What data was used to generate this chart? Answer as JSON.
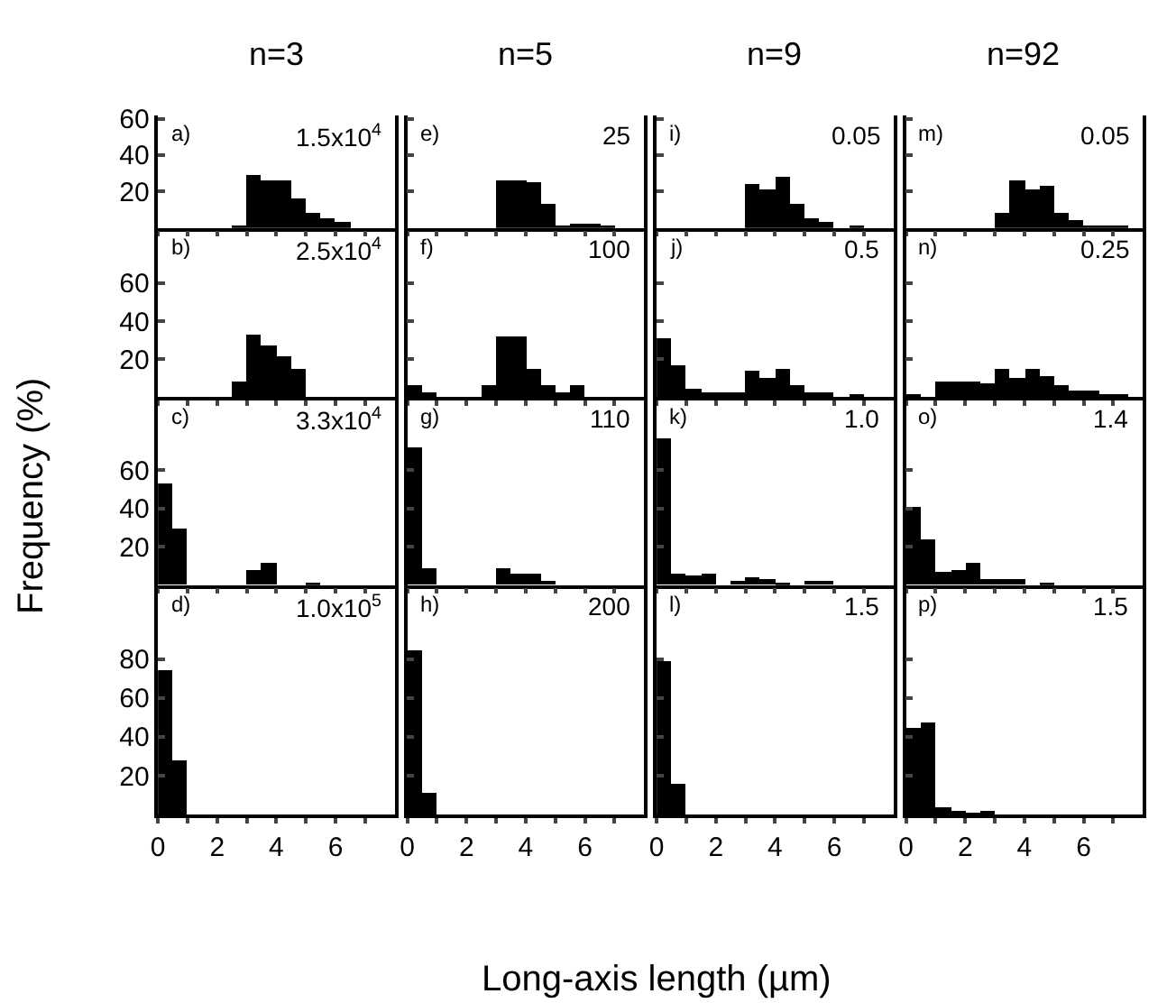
{
  "chart_data": [
    {
      "type": "histogram",
      "title": "n=3",
      "ylabel": "Frequency (%)",
      "annotations": [
        "a)",
        "1.5x10$^{4}$"
      ],
      "bins": [
        0,
        0.5,
        1,
        1.5,
        2,
        2.5,
        3,
        3.5,
        4,
        4.5,
        5,
        5.5,
        6,
        6.5,
        7,
        7.5,
        8
      ],
      "values": [
        0,
        0,
        0,
        0,
        0,
        1,
        29,
        26,
        26,
        16,
        9,
        6,
        4,
        0,
        0,
        0
      ],
      "color": "#000000",
      "xlim": [
        0,
        8
      ],
      "xticks": [
        0,
        {
          "value": 1,
          "label": null
        },
        2,
        {
          "value": 3,
          "label": null
        },
        4,
        {
          "value": 5,
          "label": null
        },
        6,
        {
          "value": 7,
          "label": null
        }
      ],
      "ylim": [
        0,
        62
      ],
      "yticks": [
        20,
        40,
        60
      ],
      "tick_labels": "y"
    },
    {
      "type": "histogram",
      "annotations": [
        "b)",
        "2.5x10$^{4}$"
      ],
      "bins": [
        0,
        0.5,
        1,
        1.5,
        2,
        2.5,
        3,
        3.5,
        4,
        4.5,
        5,
        5.5,
        6,
        6.5,
        7,
        7.5,
        8
      ],
      "values": [
        0,
        0,
        0,
        0,
        0,
        8,
        33,
        27,
        22,
        15,
        0,
        0,
        0,
        0,
        0,
        0
      ],
      "color": "#000000",
      "xlim": [
        0,
        8
      ],
      "xticks": [
        0,
        {
          "value": 1,
          "label": null
        },
        2,
        {
          "value": 3,
          "label": null
        },
        4,
        {
          "value": 5,
          "label": null
        },
        6,
        {
          "value": 7,
          "label": null
        }
      ],
      "ylim": [
        0,
        89
      ],
      "yticks": [
        20,
        40,
        60
      ],
      "tick_labels": "y"
    },
    {
      "type": "histogram",
      "annotations": [
        "c)",
        "3.3x10$^{4}$"
      ],
      "bins": [
        0,
        0.5,
        1,
        1.5,
        2,
        2.5,
        3,
        3.5,
        4,
        4.5,
        5,
        5.5,
        6,
        6.5,
        7,
        7.5,
        8
      ],
      "values": [
        53,
        29,
        0,
        0,
        0,
        0,
        8,
        11,
        0,
        0,
        1,
        0,
        0,
        0,
        0,
        0
      ],
      "color": "#000000",
      "xlim": [
        0,
        8
      ],
      "xticks": [
        0,
        {
          "value": 1,
          "label": null
        },
        2,
        {
          "value": 3,
          "label": null
        },
        4,
        {
          "value": 5,
          "label": null
        },
        6,
        {
          "value": 7,
          "label": null
        }
      ],
      "ylim": [
        0,
        98
      ],
      "yticks": [
        20,
        40,
        60
      ],
      "tick_labels": "y"
    },
    {
      "type": "histogram",
      "annotations": [
        "d)",
        "1.0x10$^{5}$"
      ],
      "bins": [
        0,
        0.5,
        1,
        1.5,
        2,
        2.5,
        3,
        3.5,
        4,
        4.5,
        5,
        5.5,
        6,
        6.5,
        7,
        7.5,
        8
      ],
      "values": [
        74,
        28,
        0,
        0,
        0,
        0,
        0,
        0,
        0,
        0,
        0,
        0,
        0,
        0,
        0,
        0
      ],
      "color": "#000000",
      "xlim": [
        0,
        8
      ],
      "xticks": [
        0,
        {
          "value": 1,
          "label": null
        },
        2,
        {
          "value": 3,
          "label": null
        },
        4,
        {
          "value": 5,
          "label": null
        },
        6,
        {
          "value": 7,
          "label": null
        }
      ],
      "ylim": [
        0,
        118
      ],
      "yticks": [
        20,
        40,
        60,
        80
      ]
    },
    {
      "type": "histogram",
      "title": "n=5",
      "annotations": [
        "e)",
        "25"
      ],
      "bins": [
        0,
        0.5,
        1,
        1.5,
        2,
        2.5,
        3,
        3.5,
        4,
        4.5,
        5,
        5.5,
        6,
        6.5,
        7,
        7.5,
        8
      ],
      "values": [
        0,
        0,
        0,
        0,
        0,
        0,
        26,
        26,
        25,
        14,
        1,
        3,
        3,
        1,
        0,
        0
      ],
      "color": "#000000",
      "xlim": [
        0,
        8
      ],
      "xticks": [
        0,
        {
          "value": 1,
          "label": null
        },
        2,
        {
          "value": 3,
          "label": null
        },
        4,
        {
          "value": 5,
          "label": null
        },
        6,
        {
          "value": 7,
          "label": null
        }
      ],
      "ylim": [
        0,
        62
      ],
      "yticks": [
        {
          "value": 20,
          "label": null
        },
        {
          "value": 40,
          "label": null
        },
        {
          "value": 60,
          "label": null
        }
      ],
      "tick_labels": false
    },
    {
      "type": "histogram",
      "annotations": [
        "f)",
        "100"
      ],
      "bins": [
        0,
        0.5,
        1,
        1.5,
        2,
        2.5,
        3,
        3.5,
        4,
        4.5,
        5,
        5.5,
        6,
        6.5,
        7,
        7.5,
        8
      ],
      "values": [
        6,
        3,
        0,
        0,
        0,
        6,
        32,
        32,
        15,
        6,
        3,
        6,
        0,
        0,
        0,
        0
      ],
      "color": "#000000",
      "xlim": [
        0,
        8
      ],
      "xticks": [
        0,
        {
          "value": 1,
          "label": null
        },
        2,
        {
          "value": 3,
          "label": null
        },
        4,
        {
          "value": 5,
          "label": null
        },
        6,
        {
          "value": 7,
          "label": null
        }
      ],
      "ylim": [
        0,
        89
      ],
      "yticks": [
        {
          "value": 20,
          "label": null
        },
        {
          "value": 40,
          "label": null
        },
        {
          "value": 60,
          "label": null
        }
      ],
      "tick_labels": false
    },
    {
      "type": "histogram",
      "annotations": [
        "g)",
        "110"
      ],
      "bins": [
        0,
        0.5,
        1,
        1.5,
        2,
        2.5,
        3,
        3.5,
        4,
        4.5,
        5,
        5.5,
        6,
        6.5,
        7,
        7.5,
        8
      ],
      "values": [
        72,
        9,
        0,
        0,
        0,
        0,
        9,
        6,
        6,
        2,
        0,
        0,
        0,
        0,
        0,
        0
      ],
      "color": "#000000",
      "xlim": [
        0,
        8
      ],
      "xticks": [
        0,
        {
          "value": 1,
          "label": null
        },
        2,
        {
          "value": 3,
          "label": null
        },
        4,
        {
          "value": 5,
          "label": null
        },
        6,
        {
          "value": 7,
          "label": null
        }
      ],
      "ylim": [
        0,
        98
      ],
      "yticks": [
        {
          "value": 20,
          "label": null
        },
        {
          "value": 40,
          "label": null
        },
        {
          "value": 60,
          "label": null
        }
      ],
      "tick_labels": false
    },
    {
      "type": "histogram",
      "xlabel": "Long-axis length (µm)",
      "annotations": [
        "h)",
        "200"
      ],
      "bins": [
        0,
        0.5,
        1,
        1.5,
        2,
        2.5,
        3,
        3.5,
        4,
        4.5,
        5,
        5.5,
        6,
        6.5,
        7,
        7.5,
        8
      ],
      "values": [
        85,
        11,
        0,
        0,
        0,
        0,
        0,
        0,
        0,
        0,
        0,
        0,
        0,
        0,
        0,
        0
      ],
      "color": "#000000",
      "xlim": [
        0,
        8
      ],
      "xticks": [
        0,
        {
          "value": 1,
          "label": null
        },
        2,
        {
          "value": 3,
          "label": null
        },
        4,
        {
          "value": 5,
          "label": null
        },
        6,
        {
          "value": 7,
          "label": null
        }
      ],
      "ylim": [
        0,
        118
      ],
      "yticks": [
        {
          "value": 20,
          "label": null
        },
        {
          "value": 40,
          "label": null
        },
        {
          "value": 60,
          "label": null
        },
        {
          "value": 80,
          "label": null
        }
      ],
      "tick_labels": "x"
    },
    {
      "type": "histogram",
      "title": "n=9",
      "annotations": [
        "i)",
        "0.05"
      ],
      "bins": [
        0,
        0.5,
        1,
        1.5,
        2,
        2.5,
        3,
        3.5,
        4,
        4.5,
        5,
        5.5,
        6,
        6.5,
        7,
        7.5,
        8
      ],
      "values": [
        0,
        0,
        0,
        0,
        0,
        0,
        24,
        21,
        28,
        14,
        6,
        4,
        0,
        1,
        0,
        0
      ],
      "color": "#000000",
      "xlim": [
        0,
        8
      ],
      "xticks": [
        0,
        {
          "value": 1,
          "label": null
        },
        2,
        {
          "value": 3,
          "label": null
        },
        4,
        {
          "value": 5,
          "label": null
        },
        6,
        {
          "value": 7,
          "label": null
        }
      ],
      "ylim": [
        0,
        62
      ],
      "yticks": [
        {
          "value": 20,
          "label": null
        },
        {
          "value": 40,
          "label": null
        },
        {
          "value": 60,
          "label": null
        }
      ],
      "tick_labels": false
    },
    {
      "type": "histogram",
      "annotations": [
        "j)",
        "0.5"
      ],
      "bins": [
        0,
        0.5,
        1,
        1.5,
        2,
        2.5,
        3,
        3.5,
        4,
        4.5,
        5,
        5.5,
        6,
        6.5,
        7,
        7.5,
        8
      ],
      "values": [
        31,
        17,
        5,
        3,
        3,
        3,
        14,
        10,
        15,
        6,
        3,
        3,
        0,
        1,
        0,
        0
      ],
      "color": "#000000",
      "xlim": [
        0,
        8
      ],
      "xticks": [
        0,
        {
          "value": 1,
          "label": null
        },
        2,
        {
          "value": 3,
          "label": null
        },
        4,
        {
          "value": 5,
          "label": null
        },
        6,
        {
          "value": 7,
          "label": null
        }
      ],
      "ylim": [
        0,
        89
      ],
      "yticks": [
        {
          "value": 20,
          "label": null
        },
        {
          "value": 40,
          "label": null
        },
        {
          "value": 60,
          "label": null
        }
      ],
      "tick_labels": false
    },
    {
      "type": "histogram",
      "annotations": [
        "k)",
        "1.0"
      ],
      "bins": [
        0,
        0.5,
        1,
        1.5,
        2,
        2.5,
        3,
        3.5,
        4,
        4.5,
        5,
        5.5,
        6,
        6.5,
        7,
        7.5,
        8
      ],
      "values": [
        76,
        6,
        5,
        6,
        0,
        2,
        4,
        3,
        1,
        0,
        2,
        2,
        0,
        0,
        0,
        0
      ],
      "color": "#000000",
      "xlim": [
        0,
        8
      ],
      "xticks": [
        0,
        {
          "value": 1,
          "label": null
        },
        2,
        {
          "value": 3,
          "label": null
        },
        4,
        {
          "value": 5,
          "label": null
        },
        6,
        {
          "value": 7,
          "label": null
        }
      ],
      "ylim": [
        0,
        98
      ],
      "yticks": [
        {
          "value": 20,
          "label": null
        },
        {
          "value": 40,
          "label": null
        },
        {
          "value": 60,
          "label": null
        }
      ],
      "tick_labels": false
    },
    {
      "type": "histogram",
      "annotations": [
        "l)",
        "1.5"
      ],
      "bins": [
        0,
        0.5,
        1,
        1.5,
        2,
        2.5,
        3,
        3.5,
        4,
        4.5,
        5,
        5.5,
        6,
        6.5,
        7,
        7.5,
        8
      ],
      "values": [
        79,
        16,
        0,
        0,
        0,
        0,
        0,
        0,
        0,
        0,
        0,
        0,
        0,
        0,
        0,
        0
      ],
      "color": "#000000",
      "xlim": [
        0,
        8
      ],
      "xticks": [
        0,
        {
          "value": 1,
          "label": null
        },
        2,
        {
          "value": 3,
          "label": null
        },
        4,
        {
          "value": 5,
          "label": null
        },
        6,
        {
          "value": 7,
          "label": null
        }
      ],
      "ylim": [
        0,
        118
      ],
      "yticks": [
        {
          "value": 20,
          "label": null
        },
        {
          "value": 40,
          "label": null
        },
        {
          "value": 60,
          "label": null
        },
        {
          "value": 80,
          "label": null
        }
      ],
      "tick_labels": "x"
    },
    {
      "type": "histogram",
      "title": "n=92",
      "annotations": [
        "m)",
        "0.05"
      ],
      "bins": [
        0,
        0.5,
        1,
        1.5,
        2,
        2.5,
        3,
        3.5,
        4,
        4.5,
        5,
        5.5,
        6,
        6.5,
        7,
        7.5,
        8
      ],
      "values": [
        0,
        0,
        0,
        0,
        0,
        0,
        9,
        26,
        21,
        23,
        9,
        5,
        2,
        1,
        1,
        0
      ],
      "color": "#000000",
      "xlim": [
        0,
        8
      ],
      "xticks": [
        0,
        {
          "value": 1,
          "label": null
        },
        2,
        {
          "value": 3,
          "label": null
        },
        4,
        {
          "value": 5,
          "label": null
        },
        6,
        {
          "value": 7,
          "label": null
        }
      ],
      "ylim": [
        0,
        62
      ],
      "yticks": [
        {
          "value": 20,
          "label": null
        },
        {
          "value": 40,
          "label": null
        },
        {
          "value": 60,
          "label": null
        }
      ],
      "tick_labels": false
    },
    {
      "type": "histogram",
      "annotations": [
        "n)",
        "0.25"
      ],
      "bins": [
        0,
        0.5,
        1,
        1.5,
        2,
        2.5,
        3,
        3.5,
        4,
        4.5,
        5,
        5.5,
        6,
        6.5,
        7,
        7.5,
        8
      ],
      "values": [
        2,
        0,
        8,
        8,
        8,
        7,
        15,
        10,
        15,
        11,
        6,
        4,
        4,
        2,
        2,
        0
      ],
      "color": "#000000",
      "xlim": [
        0,
        8
      ],
      "xticks": [
        0,
        {
          "value": 1,
          "label": null
        },
        2,
        {
          "value": 3,
          "label": null
        },
        4,
        {
          "value": 5,
          "label": null
        },
        6,
        {
          "value": 7,
          "label": null
        }
      ],
      "ylim": [
        0,
        89
      ],
      "yticks": [
        {
          "value": 20,
          "label": null
        },
        {
          "value": 40,
          "label": null
        },
        {
          "value": 60,
          "label": null
        }
      ],
      "tick_labels": false
    },
    {
      "type": "histogram",
      "annotations": [
        "o)",
        "1.4"
      ],
      "bins": [
        0,
        0.5,
        1,
        1.5,
        2,
        2.5,
        3,
        3.5,
        4,
        4.5,
        5,
        5.5,
        6,
        6.5,
        7,
        7.5,
        8
      ],
      "values": [
        41,
        24,
        7,
        8,
        11,
        3,
        3,
        3,
        0,
        1,
        0,
        0,
        0,
        0,
        0,
        0
      ],
      "color": "#000000",
      "xlim": [
        0,
        8
      ],
      "xticks": [
        0,
        {
          "value": 1,
          "label": null
        },
        2,
        {
          "value": 3,
          "label": null
        },
        4,
        {
          "value": 5,
          "label": null
        },
        6,
        {
          "value": 7,
          "label": null
        }
      ],
      "ylim": [
        0,
        98
      ],
      "yticks": [
        {
          "value": 20,
          "label": null
        },
        {
          "value": 40,
          "label": null
        },
        {
          "value": 60,
          "label": null
        }
      ],
      "tick_labels": false
    },
    {
      "type": "histogram",
      "annotations": [
        "p)",
        "1.5"
      ],
      "bins": [
        0,
        0.5,
        1,
        1.5,
        2,
        2.5,
        3,
        3.5,
        4,
        4.5,
        5,
        5.5,
        6,
        6.5,
        7,
        7.5,
        8
      ],
      "values": [
        45,
        48,
        4,
        2,
        1,
        2,
        0,
        0,
        0,
        0,
        0,
        0,
        0,
        0,
        0,
        0
      ],
      "color": "#000000",
      "xlim": [
        0,
        8
      ],
      "xticks": [
        0,
        {
          "value": 1,
          "label": null
        },
        2,
        {
          "value": 3,
          "label": null
        },
        4,
        {
          "value": 5,
          "label": null
        },
        6,
        {
          "value": 7,
          "label": null
        }
      ],
      "ylim": [
        0,
        118
      ],
      "yticks": [
        {
          "value": 20,
          "label": null
        },
        {
          "value": 40,
          "label": null
        },
        {
          "value": 60,
          "label": null
        },
        {
          "value": 80,
          "label": null
        }
      ],
      "tick_labels": "x"
    }
  ]
}
